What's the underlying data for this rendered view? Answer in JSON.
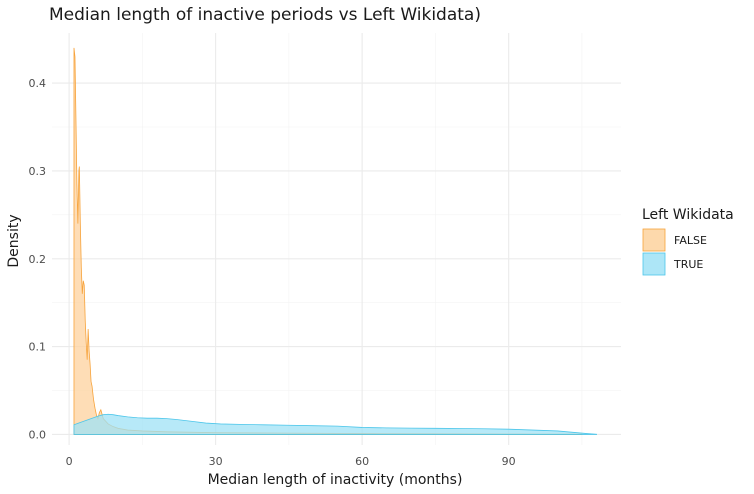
{
  "chart_data": {
    "type": "area",
    "title": "Median length of inactive periods vs Left Wikidata)",
    "xlabel": "Median length of inactivity (months)",
    "ylabel": "Density",
    "xlim": [
      -3.5,
      113
    ],
    "ylim": [
      -0.012,
      0.457
    ],
    "x_ticks": [
      0,
      30,
      60,
      90
    ],
    "x_minor_ticks": [
      15,
      45,
      75,
      105
    ],
    "y_ticks": [
      0.0,
      0.1,
      0.2,
      0.3,
      0.4
    ],
    "y_tick_labels": [
      "0.0",
      "0.1",
      "0.2",
      "0.3",
      "0.4"
    ],
    "y_minor_ticks": [
      0.05,
      0.15,
      0.25,
      0.35
    ],
    "grid": true,
    "legend": {
      "title": "Left Wikidata",
      "position": "right"
    },
    "series": [
      {
        "name": "FALSE",
        "fill": "#fdd29d",
        "stroke": "#f7a33b",
        "x": [
          1,
          1.2,
          1.4,
          1.6,
          1.8,
          2.0,
          2.1,
          2.3,
          2.5,
          2.7,
          2.9,
          3.1,
          3.3,
          3.5,
          3.7,
          3.9,
          4.1,
          4.3,
          4.5,
          4.7,
          5.0,
          5.3,
          5.6,
          5.9,
          6.2,
          6.5,
          7,
          7.5,
          8,
          9,
          10,
          12,
          15,
          20,
          30,
          45,
          60,
          75,
          90,
          105
        ],
        "values": [
          0.44,
          0.43,
          0.36,
          0.285,
          0.24,
          0.3,
          0.305,
          0.24,
          0.19,
          0.16,
          0.175,
          0.17,
          0.13,
          0.105,
          0.085,
          0.12,
          0.095,
          0.08,
          0.06,
          0.055,
          0.04,
          0.03,
          0.022,
          0.018,
          0.025,
          0.028,
          0.018,
          0.015,
          0.012,
          0.009,
          0.007,
          0.005,
          0.004,
          0.003,
          0.002,
          0.0015,
          0.001,
          0.0008,
          0.0005,
          0.0003
        ]
      },
      {
        "name": "TRUE",
        "fill": "#9fe2f6",
        "stroke": "#4cc6ea",
        "x": [
          1,
          2,
          3,
          4,
          5,
          6,
          7,
          8,
          9,
          10,
          12,
          14,
          16,
          18,
          20,
          22,
          25,
          28,
          31,
          35,
          40,
          45,
          50,
          55,
          60,
          65,
          70,
          75,
          80,
          85,
          90,
          95,
          100,
          104,
          106,
          108
        ],
        "values": [
          0.011,
          0.013,
          0.015,
          0.017,
          0.019,
          0.021,
          0.0225,
          0.023,
          0.0225,
          0.0215,
          0.02,
          0.019,
          0.0185,
          0.0185,
          0.018,
          0.017,
          0.015,
          0.013,
          0.012,
          0.0115,
          0.011,
          0.0105,
          0.01,
          0.0095,
          0.008,
          0.0075,
          0.0072,
          0.007,
          0.0068,
          0.0065,
          0.006,
          0.005,
          0.004,
          0.002,
          0.001,
          0.0002
        ]
      }
    ]
  }
}
